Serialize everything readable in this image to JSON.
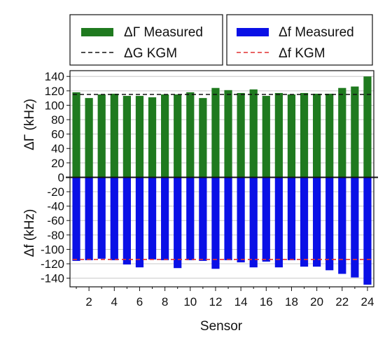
{
  "chart_data": {
    "type": "bar",
    "title": "",
    "xlabel": "Sensor",
    "ylabel_top": "ΔΓ (kHz)",
    "ylabel_bottom": "Δf (kHz)",
    "x": [
      1,
      2,
      3,
      4,
      5,
      6,
      7,
      8,
      9,
      10,
      11,
      12,
      13,
      14,
      15,
      16,
      17,
      18,
      19,
      20,
      21,
      22,
      23,
      24
    ],
    "x_ticks": [
      2,
      4,
      6,
      8,
      10,
      12,
      14,
      16,
      18,
      20,
      22,
      24
    ],
    "y_ticks": [
      140,
      120,
      100,
      80,
      60,
      40,
      20,
      0,
      -20,
      -40,
      -60,
      -80,
      -100,
      -120,
      -140
    ],
    "ylim": [
      -152,
      148
    ],
    "xlim": [
      0.5,
      24.5
    ],
    "series": [
      {
        "name": "ΔΓ Measured",
        "color": "#1f7a1f",
        "values": [
          118,
          110,
          115,
          116,
          113,
          113,
          111,
          115,
          115,
          118,
          110,
          124,
          121,
          117,
          122,
          113,
          117,
          115,
          117,
          116,
          116,
          124,
          126,
          140
        ]
      },
      {
        "name": "Δf Measured",
        "color": "#0a10e6",
        "values": [
          -116,
          -115,
          -113,
          -115,
          -121,
          -125,
          -114,
          -115,
          -126,
          -115,
          -116,
          -127,
          -115,
          -118,
          -125,
          -117,
          -125,
          -115,
          -124,
          -124,
          -129,
          -134,
          -139,
          -149
        ]
      }
    ],
    "reference_lines": [
      {
        "name": "ΔG KGM",
        "value": 115,
        "color": "#111111",
        "style": "dashed"
      },
      {
        "name": "Δf KGM",
        "value": -114,
        "color": "#e03030",
        "style": "dashed"
      }
    ],
    "legend": [
      {
        "position": "top-left",
        "entries": [
          {
            "label": "ΔΓ Measured",
            "kind": "patch",
            "color": "#1f7a1f"
          },
          {
            "label": "ΔG KGM",
            "kind": "dashed-line",
            "color": "#111111"
          }
        ]
      },
      {
        "position": "top-right",
        "entries": [
          {
            "label": "Δf Measured",
            "kind": "patch",
            "color": "#0a10e6"
          },
          {
            "label": "Δf KGM",
            "kind": "dashed-line",
            "color": "#e03030"
          }
        ]
      }
    ],
    "grid": "horizontal"
  }
}
